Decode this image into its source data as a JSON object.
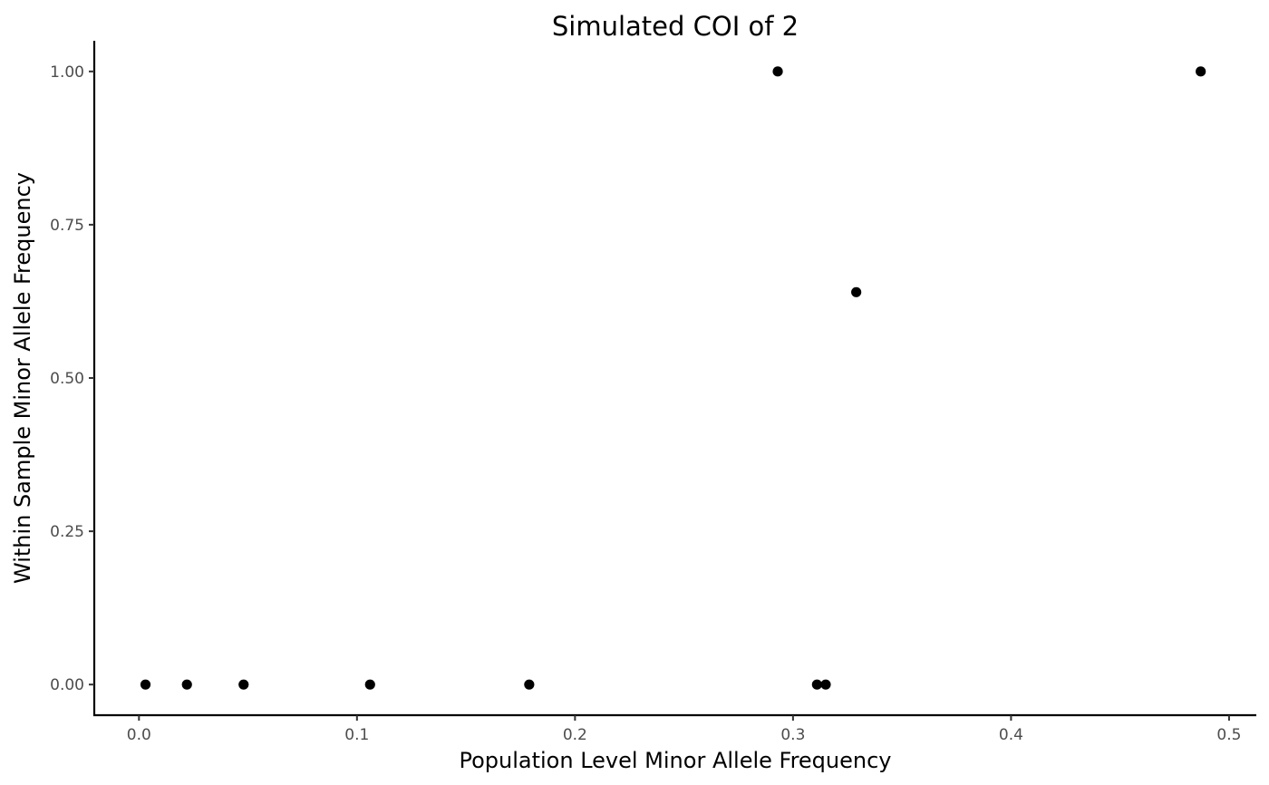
{
  "chart_data": {
    "type": "scatter",
    "title": "Simulated COI of 2",
    "xlabel": "Population Level Minor Allele Frequency",
    "ylabel": "Within Sample Minor Allele Frequency",
    "xlim": [
      -0.0205,
      0.5125
    ],
    "ylim": [
      -0.05,
      1.05
    ],
    "xticks": [
      0,
      0.1,
      0.2,
      0.3,
      0.4,
      0.5
    ],
    "xtick_labels": [
      "0.0",
      "0.1",
      "0.2",
      "0.3",
      "0.4",
      "0.5"
    ],
    "yticks": [
      0,
      0.25,
      0.5,
      0.75,
      1.0
    ],
    "ytick_labels": [
      "0.00",
      "0.25",
      "0.50",
      "0.75",
      "1.00"
    ],
    "grid": false,
    "point_color": "#000000",
    "points": [
      {
        "x": 0.003,
        "y": 0.0
      },
      {
        "x": 0.022,
        "y": 0.0
      },
      {
        "x": 0.048,
        "y": 0.0
      },
      {
        "x": 0.106,
        "y": 0.0
      },
      {
        "x": 0.179,
        "y": 0.0
      },
      {
        "x": 0.293,
        "y": 1.0
      },
      {
        "x": 0.311,
        "y": 0.0
      },
      {
        "x": 0.315,
        "y": 0.0
      },
      {
        "x": 0.329,
        "y": 0.64
      },
      {
        "x": 0.487,
        "y": 1.0
      }
    ]
  }
}
